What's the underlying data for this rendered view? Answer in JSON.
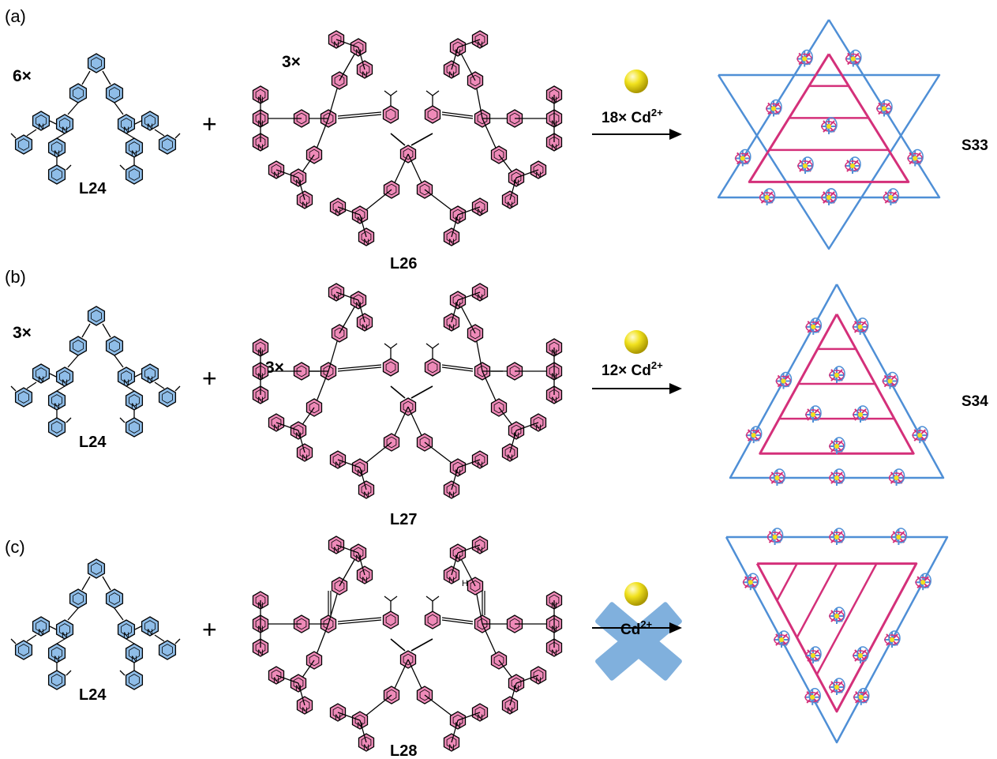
{
  "colors": {
    "blue": "#4f8fd6",
    "blue_fill": "#8fbde8",
    "pink": "#d4307a",
    "pink_fill": "#ee8ab8",
    "cd": "#f1e21e",
    "cross": "#6aa3d8"
  },
  "panels": [
    {
      "tag": "(a)",
      "l24_mult": "6×",
      "l24_label": "L24",
      "second_mult": "3×",
      "second_label": "L26",
      "plus": "+",
      "reagent": "18× Cd",
      "charge": "2+",
      "product": "S33"
    },
    {
      "tag": "(b)",
      "l24_mult": "3×",
      "l24_label": "L24",
      "second_mult": "3×",
      "second_label": "L27",
      "plus": "+",
      "reagent": "12× Cd",
      "charge": "2+",
      "product": "S34"
    },
    {
      "tag": "(c)",
      "l24_mult": "",
      "l24_label": "L24",
      "second_mult": "",
      "second_label": "L28",
      "plus": "+",
      "reagent": "Cd",
      "charge": "2+",
      "product": ""
    }
  ],
  "atoms": {
    "N": "N",
    "OH": "OH",
    "HO": "HO"
  }
}
